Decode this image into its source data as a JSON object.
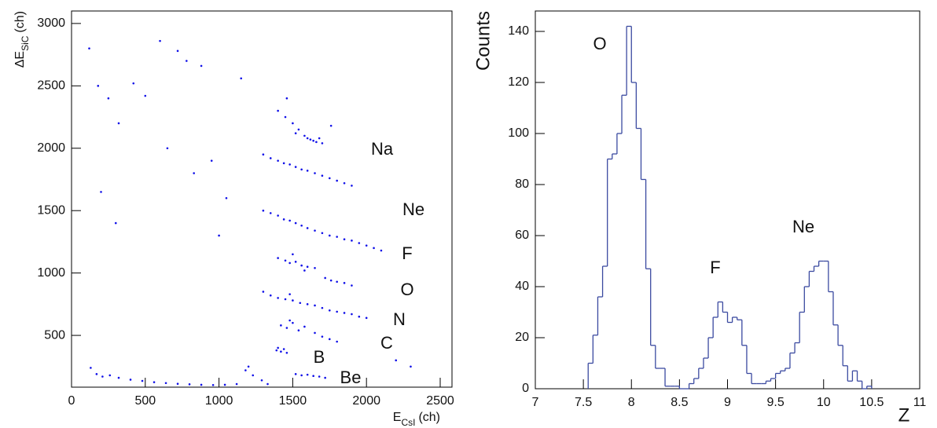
{
  "chart_data": [
    {
      "type": "scatter",
      "color": "#1010e8",
      "xlabel": {
        "main": "E",
        "sub": "CsI",
        "unit": "(ch)"
      },
      "ylabel": {
        "main": "ΔE",
        "sub": "SiC",
        "unit": "(ch)"
      },
      "xlim": [
        0,
        2580
      ],
      "ylim": [
        85,
        3100
      ],
      "xticks": [
        0,
        500,
        1000,
        1500,
        2000,
        2500
      ],
      "yticks": [
        500,
        1000,
        1500,
        2000,
        2500,
        3000
      ],
      "annotations": [
        "Na",
        "Ne",
        "F",
        "O",
        "N",
        "C",
        "B",
        "Be"
      ],
      "x": [
        130,
        170,
        210,
        260,
        320,
        400,
        480,
        560,
        640,
        720,
        800,
        880,
        960,
        1040,
        1120,
        1180,
        1230,
        1290,
        1330,
        1200,
        1520,
        1560,
        1600,
        1640,
        1680,
        1720,
        1390,
        1420,
        1440,
        1460,
        1400,
        1420,
        1460,
        1500,
        1540,
        1580,
        1650,
        1700,
        1750,
        1800,
        1480,
        1300,
        1350,
        1400,
        1450,
        1500,
        1550,
        1600,
        1650,
        1700,
        1750,
        1800,
        1850,
        1900,
        1950,
        2000,
        1480,
        1400,
        1450,
        1480,
        1520,
        1560,
        1600,
        1650,
        1720,
        1760,
        1800,
        1850,
        1900,
        1500,
        1580,
        1300,
        1350,
        1400,
        1440,
        1480,
        1520,
        1560,
        1600,
        1650,
        1700,
        1750,
        1800,
        1850,
        1900,
        1950,
        2000,
        2050,
        2100,
        1300,
        1350,
        1400,
        1440,
        1480,
        1520,
        1560,
        1600,
        1650,
        1700,
        1750,
        1800,
        1850,
        1900,
        1400,
        1450,
        1500,
        1540,
        1580,
        1600,
        1620,
        1640,
        1660,
        1680,
        1700,
        1520,
        1460,
        1760,
        120,
        180,
        250,
        320,
        420,
        500,
        600,
        650,
        720,
        780,
        830,
        880,
        950,
        1050,
        1150,
        200,
        300,
        1000,
        2200,
        2300
      ],
      "y": [
        240,
        190,
        170,
        180,
        160,
        145,
        135,
        125,
        118,
        112,
        108,
        104,
        102,
        104,
        110,
        220,
        180,
        140,
        110,
        250,
        190,
        180,
        185,
        175,
        170,
        160,
        380,
        370,
        390,
        360,
        400,
        580,
        560,
        600,
        540,
        570,
        520,
        490,
        470,
        450,
        620,
        850,
        820,
        800,
        790,
        780,
        760,
        750,
        740,
        720,
        700,
        690,
        680,
        670,
        650,
        640,
        830,
        1120,
        1100,
        1080,
        1090,
        1060,
        1050,
        1040,
        960,
        940,
        930,
        920,
        900,
        1150,
        1020,
        1500,
        1480,
        1460,
        1430,
        1420,
        1400,
        1380,
        1360,
        1340,
        1320,
        1300,
        1290,
        1270,
        1260,
        1240,
        1220,
        1200,
        1180,
        1950,
        1920,
        1900,
        1880,
        1870,
        1850,
        1830,
        1820,
        1800,
        1780,
        1760,
        1740,
        1720,
        1700,
        2300,
        2250,
        2200,
        2150,
        2100,
        2080,
        2070,
        2060,
        2050,
        2080,
        2040,
        2120,
        2400,
        2180,
        2800,
        2500,
        2400,
        2200,
        2520,
        2420,
        2860,
        2000,
        2780,
        2700,
        1800,
        2660,
        1900,
        1600,
        2560,
        1650,
        1400,
        1300,
        300,
        250
      ]
    },
    {
      "type": "histogram",
      "color": "#3b4aa0",
      "xlabel": "Z",
      "ylabel": "Counts",
      "xlim": [
        7,
        11
      ],
      "ylim": [
        0,
        148
      ],
      "xticks": [
        7,
        7.5,
        8,
        8.5,
        9,
        9.5,
        10,
        10.5,
        11
      ],
      "yticks": [
        0,
        20,
        40,
        60,
        80,
        100,
        120,
        140
      ],
      "annotations": [
        "O",
        "F",
        "Ne"
      ],
      "bins": [
        7.55,
        7.6,
        7.65,
        7.7,
        7.75,
        7.8,
        7.85,
        7.9,
        7.95,
        8.0,
        8.05,
        8.1,
        8.15,
        8.2,
        8.25,
        8.3,
        8.35,
        8.4,
        8.45,
        8.5,
        8.55,
        8.6,
        8.65,
        8.7,
        8.75,
        8.8,
        8.85,
        8.9,
        8.95,
        9.0,
        9.05,
        9.1,
        9.15,
        9.2,
        9.25,
        9.3,
        9.35,
        9.4,
        9.45,
        9.5,
        9.55,
        9.6,
        9.65,
        9.7,
        9.75,
        9.8,
        9.85,
        9.9,
        9.95,
        10.0,
        10.05,
        10.1,
        10.15,
        10.2,
        10.25,
        10.3,
        10.35,
        10.4,
        10.45,
        10.5
      ],
      "counts": [
        10,
        21,
        36,
        48,
        90,
        92,
        100,
        115,
        142,
        120,
        102,
        82,
        47,
        17,
        8,
        8,
        1,
        1,
        1,
        0,
        0,
        2,
        4,
        8,
        12,
        20,
        28,
        34,
        30,
        26,
        28,
        27,
        17,
        6,
        2,
        2,
        2,
        3,
        4,
        6,
        7,
        8,
        14,
        18,
        30,
        40,
        46,
        48,
        50,
        50,
        38,
        25,
        17,
        9,
        3,
        7,
        3,
        0,
        1
      ]
    }
  ]
}
